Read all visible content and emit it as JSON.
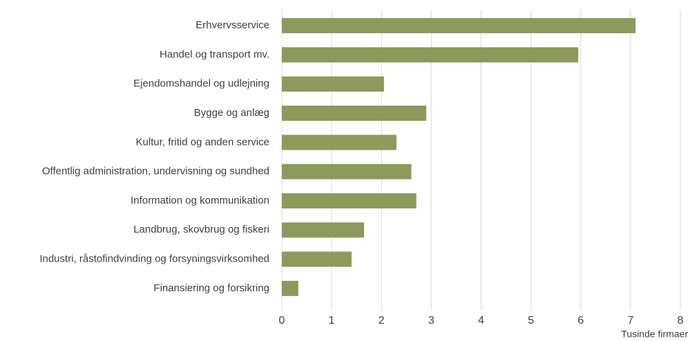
{
  "chart_data": {
    "type": "bar",
    "orientation": "horizontal",
    "x_label": "Tusinde firmaer",
    "categories": [
      "Erhvervsservice",
      "Handel og transport mv.",
      "Ejendomshandel og udlejning",
      "Bygge og anlæg",
      "Kultur, fritid og anden service",
      "Offentlig administration, undervisning og sundhed",
      "Information og kommunikation",
      "Landbrug, skovbrug og fiskeri",
      "Industri, råstofindvinding og forsyningsvirksomhed",
      "Finansiering og forsikring"
    ],
    "values": [
      7.1,
      5.95,
      2.05,
      2.9,
      2.3,
      2.6,
      2.7,
      1.65,
      1.4,
      0.33
    ],
    "color": "#8c9a5b",
    "xlim": [
      0,
      8
    ],
    "xticks": [
      0,
      1,
      2,
      3,
      4,
      5,
      6,
      7,
      8
    ],
    "grid": true
  }
}
